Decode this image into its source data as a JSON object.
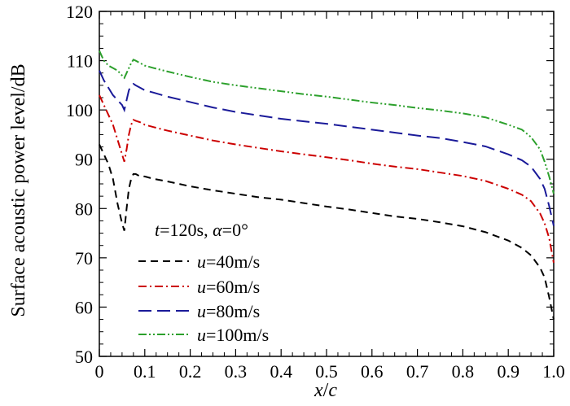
{
  "chart_data": {
    "type": "line",
    "xlabel": "x/c",
    "xlabel_parts": {
      "var1": "x",
      "sep": "/",
      "var2": "c"
    },
    "ylabel": "Surface acoustic power level/dB",
    "xlim": [
      0,
      1.0
    ],
    "ylim": [
      50,
      120
    ],
    "xticks": [
      "0",
      "0.1",
      "0.2",
      "0.3",
      "0.4",
      "0.5",
      "0.6",
      "0.7",
      "0.8",
      "0.9",
      "1.0"
    ],
    "yticks": [
      "50",
      "60",
      "70",
      "80",
      "90",
      "100",
      "110",
      "120"
    ],
    "grid": false,
    "legend_position": "lower-left",
    "legend_title": "t=120s, α=0°",
    "legend_title_parts": {
      "t_var": "t",
      "t_rest": "=120s, ",
      "a_var": "α",
      "a_rest": "=0°"
    },
    "x": [
      0.0,
      0.01,
      0.02,
      0.03,
      0.04,
      0.05,
      0.055,
      0.06,
      0.065,
      0.07,
      0.075,
      0.08,
      0.09,
      0.1,
      0.12,
      0.15,
      0.2,
      0.25,
      0.3,
      0.35,
      0.4,
      0.45,
      0.5,
      0.55,
      0.6,
      0.65,
      0.7,
      0.75,
      0.8,
      0.85,
      0.9,
      0.93,
      0.95,
      0.97,
      0.98,
      0.99,
      1.0
    ],
    "series": [
      {
        "name": "u=40m/s",
        "name_parts": {
          "var": "u",
          "rest": "=40m/s"
        },
        "color": "#000000",
        "dash": "dashed",
        "values": [
          93,
          91,
          89,
          86,
          81,
          77,
          75.5,
          80,
          84,
          86,
          87,
          87,
          86.5,
          86.5,
          86,
          85.5,
          84.5,
          83.7,
          83,
          82.3,
          81.8,
          81.1,
          80.4,
          79.8,
          79.1,
          78.4,
          77.9,
          77.2,
          76.4,
          75.2,
          73.5,
          72,
          70.5,
          68,
          66,
          62,
          57.5
        ]
      },
      {
        "name": "u=60m/s",
        "name_parts": {
          "var": "u",
          "rest": "=60m/s"
        },
        "color": "#cc0000",
        "dash": "dashdot",
        "values": [
          103,
          101,
          99,
          97,
          94,
          91,
          89.5,
          92,
          95,
          97,
          98,
          97.8,
          97.5,
          97,
          96.5,
          95.8,
          94.8,
          93.8,
          93,
          92.3,
          91.6,
          91,
          90.4,
          89.8,
          89.1,
          88.5,
          88,
          87.3,
          86.6,
          85.6,
          84,
          82.8,
          81.5,
          79,
          77,
          74,
          69
        ]
      },
      {
        "name": "u=80m/s",
        "name_parts": {
          "var": "u",
          "rest": "=80m/s"
        },
        "color": "#1a1a99",
        "dash": "longdash",
        "values": [
          108,
          106,
          104.5,
          103,
          102,
          101,
          100,
          102,
          104,
          105,
          105.3,
          105,
          104.5,
          104,
          103.5,
          102.7,
          101.6,
          100.5,
          99.6,
          98.9,
          98.2,
          97.7,
          97.2,
          96.6,
          96,
          95.4,
          94.8,
          94.3,
          93.5,
          92.6,
          91,
          89.8,
          88.5,
          86,
          84,
          80.5,
          76.5
        ]
      },
      {
        "name": "u=100m/s",
        "name_parts": {
          "var": "u",
          "rest": "=100m/s"
        },
        "color": "#2ca02c",
        "dash": "dashdotdot",
        "values": [
          112,
          110,
          109,
          108.5,
          108,
          107,
          106.5,
          107.5,
          108.5,
          109.5,
          110.2,
          110,
          109.5,
          109,
          108.5,
          107.8,
          106.7,
          105.7,
          105,
          104.4,
          103.8,
          103.2,
          102.7,
          102.1,
          101.5,
          101,
          100.4,
          99.9,
          99.3,
          98.5,
          97,
          96,
          94.5,
          92,
          89.5,
          86.5,
          83
        ]
      }
    ]
  }
}
